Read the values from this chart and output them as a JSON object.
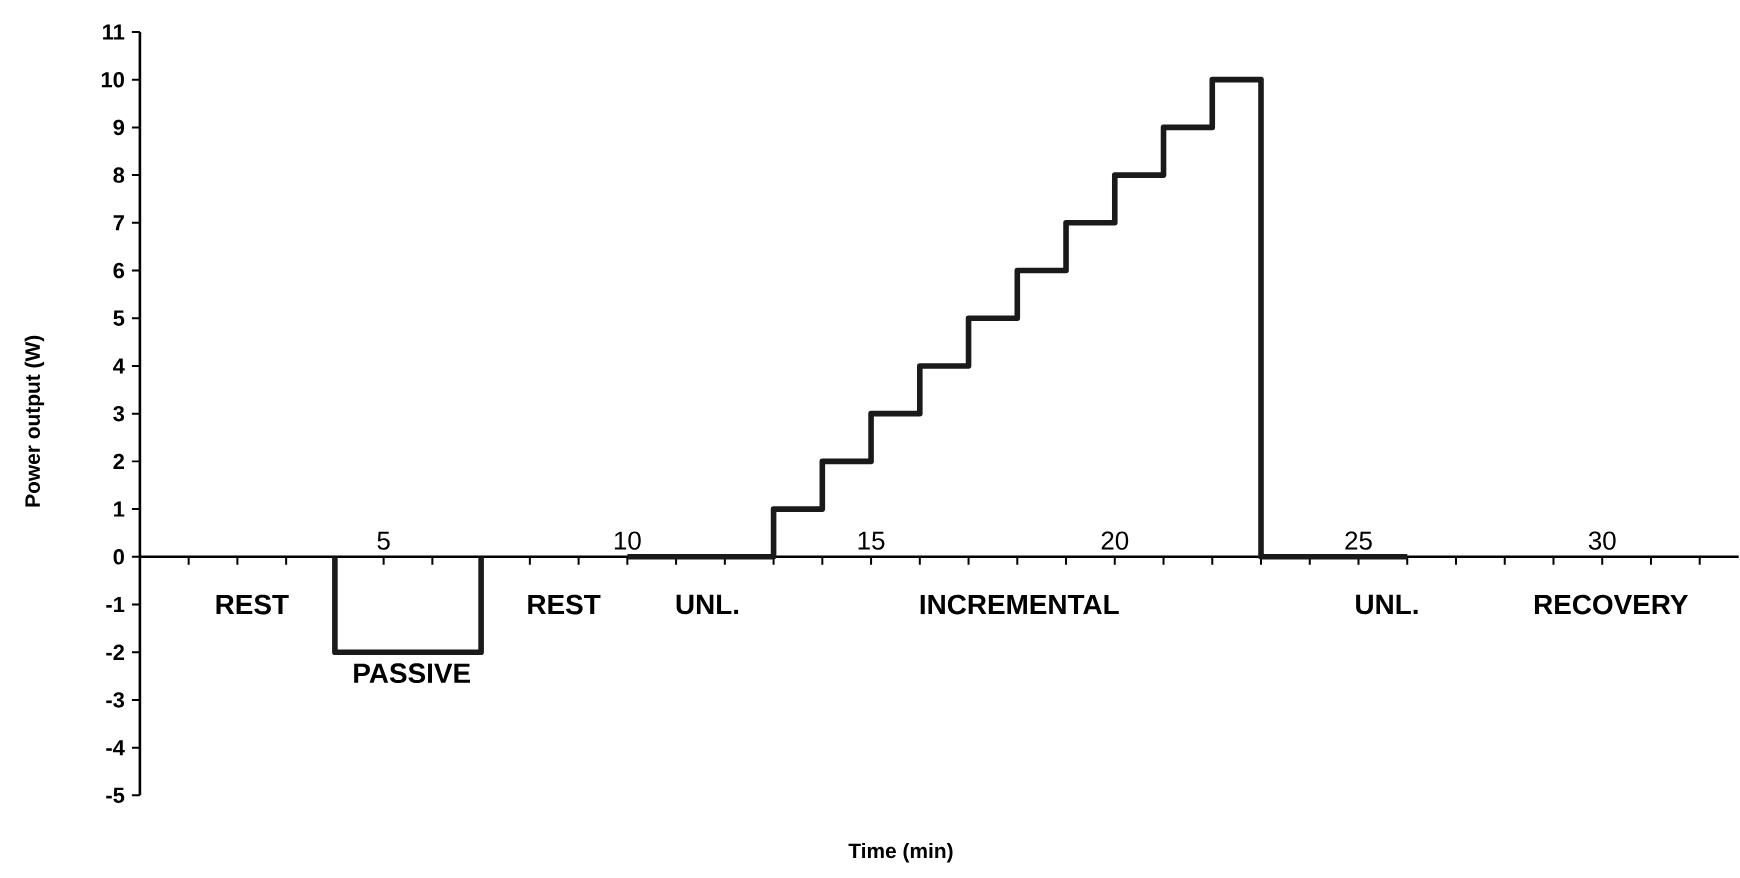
{
  "chart_data": {
    "type": "line",
    "xlabel": "Time (min)",
    "ylabel": "Power output (W)",
    "series": [
      {
        "color": "#1a1a1a",
        "x": [
          4,
          4,
          7,
          7,
          8.5,
          10,
          13,
          13,
          14,
          14,
          15,
          15,
          16,
          16,
          17,
          17,
          18,
          18,
          19,
          19,
          20,
          20,
          21,
          21,
          22,
          22,
          23,
          23,
          26
        ],
        "values": [
          0,
          -2,
          -2,
          0,
          null,
          0,
          0,
          1,
          1,
          2,
          2,
          3,
          3,
          4,
          4,
          5,
          5,
          6,
          6,
          7,
          7,
          8,
          8,
          9,
          9,
          10,
          10,
          0,
          0
        ]
      }
    ],
    "xlim": [
      0,
      32.8
    ],
    "xticks": [
      {
        "value": 1,
        "label": null
      },
      {
        "value": 2,
        "label": null
      },
      {
        "value": 3,
        "label": null
      },
      {
        "value": 4,
        "label": null
      },
      5,
      {
        "value": 6,
        "label": null
      },
      {
        "value": 7,
        "label": null
      },
      {
        "value": 8,
        "label": null
      },
      {
        "value": 9,
        "label": null
      },
      10,
      {
        "value": 11,
        "label": null
      },
      {
        "value": 12,
        "label": null
      },
      {
        "value": 13,
        "label": null
      },
      {
        "value": 14,
        "label": null
      },
      15,
      {
        "value": 16,
        "label": null
      },
      {
        "value": 17,
        "label": null
      },
      {
        "value": 18,
        "label": null
      },
      {
        "value": 19,
        "label": null
      },
      20,
      {
        "value": 21,
        "label": null
      },
      {
        "value": 22,
        "label": null
      },
      {
        "value": 23,
        "label": null
      },
      {
        "value": 24,
        "label": null
      },
      25,
      {
        "value": 26,
        "label": null
      },
      {
        "value": 27,
        "label": null
      },
      {
        "value": 28,
        "label": null
      },
      {
        "value": 29,
        "label": null
      },
      30,
      {
        "value": 31,
        "label": null
      },
      {
        "value": 32,
        "label": null
      }
    ],
    "ylim": [
      -5,
      11
    ],
    "yticks": [
      -5,
      -4,
      -3,
      -2,
      -1,
      0,
      1,
      2,
      3,
      4,
      5,
      6,
      7,
      8,
      9,
      10,
      11
    ],
    "grid": false,
    "legend": false,
    "marker": "none",
    "line_style": "solid",
    "annotations": [
      "REST",
      "PASSIVE",
      "REST",
      "UNL.",
      "INCREMENTAL",
      "UNL.",
      "RECOVERY"
    ]
  }
}
